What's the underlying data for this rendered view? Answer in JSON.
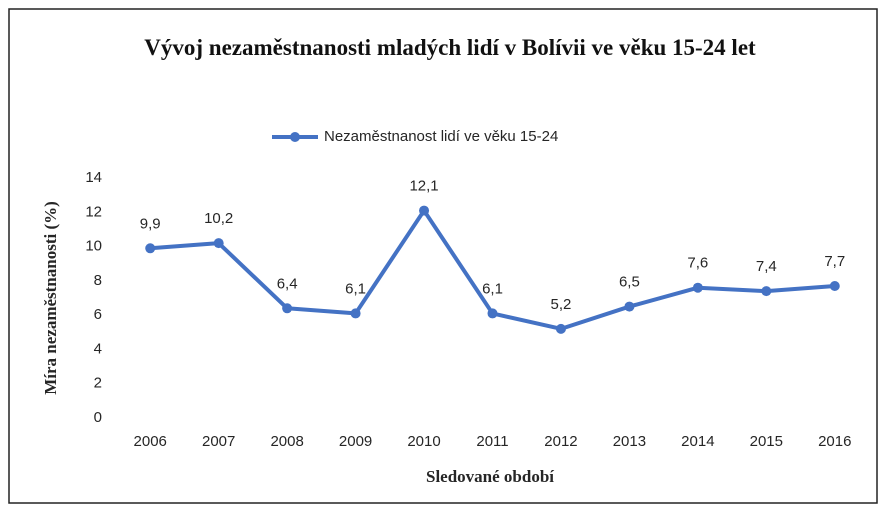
{
  "chart_data": {
    "type": "line",
    "title": "Vývoj nezaměstnanosti mladých lidí v Bolívii ve věku 15-24 let",
    "x_label": "Sledované období",
    "y_label": "Míra nezaměstnanosti (%)",
    "categories": [
      "2006",
      "2007",
      "2008",
      "2009",
      "2010",
      "2011",
      "2012",
      "2013",
      "2014",
      "2015",
      "2016"
    ],
    "series": [
      {
        "name": "Nezaměstnanost lidí ve věku 15-24",
        "color": "#4472c4",
        "values": [
          9.9,
          10.2,
          6.4,
          6.1,
          12.1,
          6.1,
          5.2,
          6.5,
          7.6,
          7.4,
          7.7
        ],
        "value_labels": [
          "9,9",
          "10,2",
          "6,4",
          "6,1",
          "12,1",
          "6,1",
          "5,2",
          "6,5",
          "7,6",
          "7,4",
          "7,7"
        ]
      }
    ],
    "ylim": [
      0,
      14
    ],
    "yticks": [
      0,
      2,
      4,
      6,
      8,
      10,
      12,
      14
    ],
    "legend": "top",
    "grid": false
  }
}
